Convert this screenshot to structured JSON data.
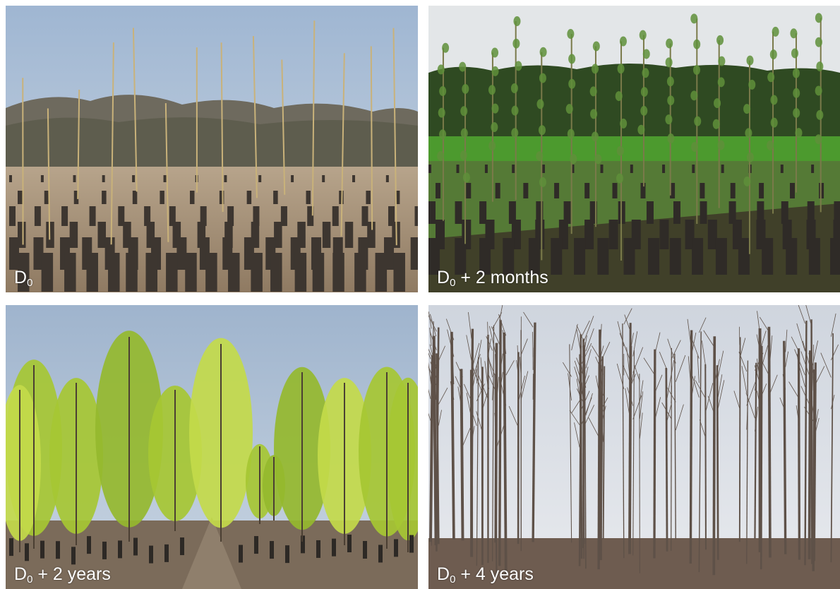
{
  "panels": [
    {
      "id": "p1",
      "base": "D",
      "sub": "0",
      "suffix": ""
    },
    {
      "id": "p2",
      "base": "D",
      "sub": "0",
      "suffix": " + 2 months"
    },
    {
      "id": "p3",
      "base": "D",
      "sub": "0",
      "suffix": " + 2 years"
    },
    {
      "id": "p4",
      "base": "D",
      "sub": "0",
      "suffix": " + 4 years"
    }
  ],
  "colors": {
    "sky_clear": "#a9bfd6",
    "sky_overcast": "#dfe3e6",
    "soil": "#a48c70",
    "grass": "#4c8a2a",
    "foliage_young": "#b8d23a",
    "bark": "#6b5c4e"
  }
}
